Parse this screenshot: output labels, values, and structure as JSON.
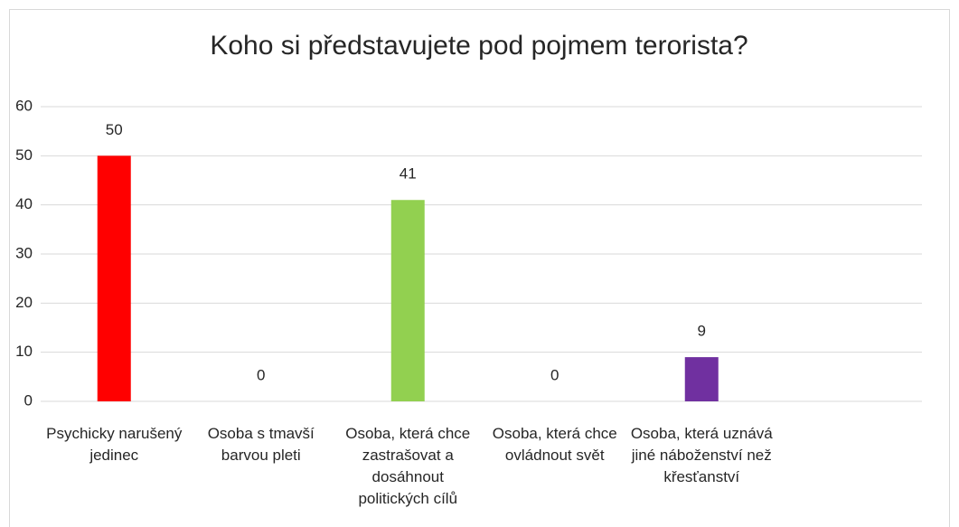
{
  "chart_data": {
    "type": "bar",
    "title": "Koho si představujete pod pojmem terorista?",
    "categories": [
      "Psychicky narušený jedinec",
      "Osoba s tmavší barvou pleti",
      "Osoba, která chce zastrašovat a dosáhnout politických cílů",
      "Osoba, která chce ovládnout svět",
      "Osoba, která uznává jiné náboženství než křesťanství"
    ],
    "values": [
      50,
      0,
      41,
      0,
      9
    ],
    "colors": [
      "#ff0000",
      "#ffc000",
      "#92d050",
      "#00b0f0",
      "#7030a0"
    ],
    "ylim": [
      0,
      60
    ],
    "yticks": [
      0,
      10,
      20,
      30,
      40,
      50,
      60
    ],
    "grid": true
  }
}
